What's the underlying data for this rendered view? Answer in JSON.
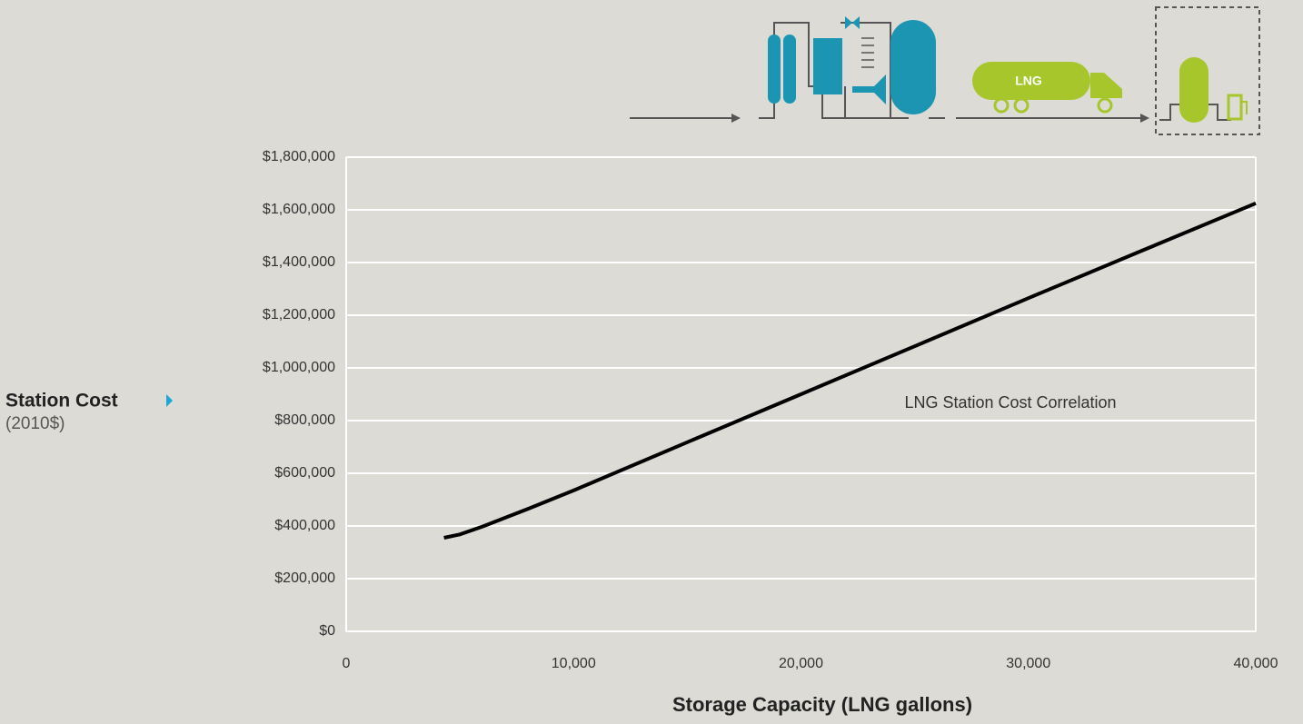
{
  "chart_data": {
    "type": "line",
    "annotation": "LNG Station Cost Correlation",
    "y_label": "Station Cost",
    "y_label_unit": "(2010$)",
    "x_label": "Storage Capacity (LNG gallons)",
    "icon_label": "LNG",
    "x": [
      4300,
      5000,
      6000,
      8000,
      10000,
      15000,
      20000,
      25000,
      30000,
      35000,
      40000
    ],
    "series": [
      {
        "name": "LNG Station Cost Correlation",
        "color": "#000000",
        "values": [
          355000,
          368000,
          398000,
          465000,
          535000,
          718000,
          900000,
          1082000,
          1265000,
          1445000,
          1625000
        ]
      }
    ],
    "xlim": [
      0,
      40000
    ],
    "xticks": [
      0,
      {
        "value": 10000,
        "label": "10,000"
      },
      {
        "value": 20000,
        "label": "20,000"
      },
      {
        "value": 30000,
        "label": "30,000"
      },
      {
        "value": 40000,
        "label": "40,000"
      }
    ],
    "ylim": [
      0,
      1800000
    ],
    "yticks": [
      {
        "value": 0,
        "label": "$0"
      },
      {
        "value": 200000,
        "label": "$200,000"
      },
      {
        "value": 400000,
        "label": "$400,000"
      },
      {
        "value": 600000,
        "label": "$600,000"
      },
      {
        "value": 800000,
        "label": "$800,000"
      },
      {
        "value": 1000000,
        "label": "$1,000,000"
      },
      {
        "value": 1200000,
        "label": "$1,200,000"
      },
      {
        "value": 1400000,
        "label": "$1,400,000"
      },
      {
        "value": 1600000,
        "label": "$1,600,000"
      },
      {
        "value": 1800000,
        "label": "$1,800,000"
      }
    ],
    "grid": true
  }
}
